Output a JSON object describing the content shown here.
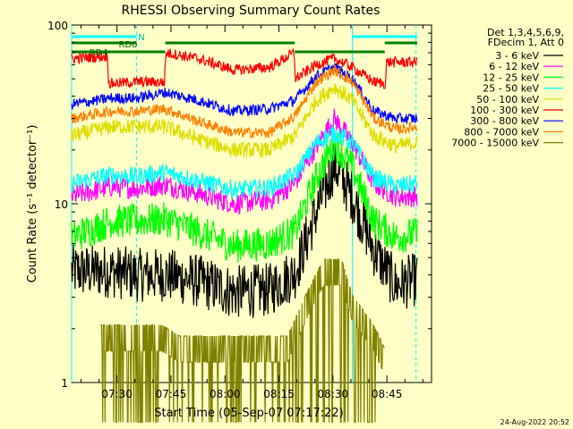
{
  "chart_data": {
    "type": "line",
    "title": "RHESSI Observing Summary Count Rates",
    "xlabel": "Start Time (05-Sep-07 07:17:22)",
    "ylabel": "Count Rate (s⁻¹ detector⁻¹)",
    "y_scale": "log",
    "ylim": [
      1,
      100
    ],
    "xlim_minutes": [
      0,
      100
    ],
    "x_ticks": [
      {
        "t": 12.6,
        "label": "07:30"
      },
      {
        "t": 27.6,
        "label": "07:45"
      },
      {
        "t": 42.6,
        "label": "08:00"
      },
      {
        "t": 57.6,
        "label": "08:15"
      },
      {
        "t": 72.6,
        "label": "08:30"
      },
      {
        "t": 87.6,
        "label": "08:45"
      }
    ],
    "y_tick_labels": [
      {
        "v": 1,
        "label": "1"
      },
      {
        "v": 10,
        "label": "10"
      },
      {
        "v": 100,
        "label": "100"
      }
    ],
    "legend_header": [
      "Det 1,3,4,5,6,9,",
      "FDecim 1, Att 0"
    ],
    "legend_position": "right",
    "timestamp": "24-Aug-2022 20:52",
    "markers": [
      {
        "label": "N",
        "color": "#00ffff",
        "segments": [
          [
            0,
            18
          ],
          [
            78,
            96
          ]
        ]
      },
      {
        "label": "RD0",
        "color": "#008000",
        "segments": [
          [
            0,
            18
          ],
          [
            26,
            62
          ],
          [
            87,
            96
          ]
        ]
      },
      {
        "label": "RD4",
        "color": "#008000",
        "segments": [
          [
            0,
            11
          ],
          [
            11,
            26
          ],
          [
            62,
            87
          ]
        ]
      }
    ],
    "vlines": [
      {
        "t": 0,
        "color": "#00ffff",
        "style": "solid"
      },
      {
        "t": 18,
        "color": "#00ffff",
        "style": "dashed"
      },
      {
        "t": 78,
        "color": "#00ffff",
        "style": "solid"
      },
      {
        "t": 95.7,
        "color": "#00ffff",
        "style": "dashed"
      }
    ],
    "series": [
      {
        "name": "3 - 6 keV",
        "color": "#000000",
        "noise": 0.35,
        "points": [
          [
            0,
            4.2
          ],
          [
            11,
            4.2
          ],
          [
            18,
            4.0
          ],
          [
            26,
            4.0
          ],
          [
            35,
            3.7
          ],
          [
            45,
            3.2
          ],
          [
            55,
            3.3
          ],
          [
            62,
            4.1
          ],
          [
            68,
            9
          ],
          [
            73,
            16.5
          ],
          [
            78,
            11
          ],
          [
            84,
            5.5
          ],
          [
            90,
            3.5
          ],
          [
            96,
            3.8
          ]
        ]
      },
      {
        "name": "6 - 12 keV",
        "color": "#ff00ff",
        "noise": 0.14,
        "points": [
          [
            0,
            11
          ],
          [
            11,
            12.5
          ],
          [
            18,
            12.2
          ],
          [
            26,
            12.8
          ],
          [
            35,
            11.5
          ],
          [
            45,
            10
          ],
          [
            55,
            10.5
          ],
          [
            62,
            13
          ],
          [
            68,
            21
          ],
          [
            73,
            30
          ],
          [
            78,
            22
          ],
          [
            84,
            13
          ],
          [
            90,
            11
          ],
          [
            96,
            11
          ]
        ]
      },
      {
        "name": "12 - 25 keV",
        "color": "#00ff00",
        "noise": 0.22,
        "points": [
          [
            0,
            6.5
          ],
          [
            11,
            8
          ],
          [
            18,
            8
          ],
          [
            26,
            8.2
          ],
          [
            35,
            7
          ],
          [
            45,
            5.8
          ],
          [
            55,
            6
          ],
          [
            62,
            7
          ],
          [
            68,
            14
          ],
          [
            73,
            22
          ],
          [
            78,
            16
          ],
          [
            84,
            8
          ],
          [
            90,
            6.5
          ],
          [
            96,
            6.8
          ]
        ]
      },
      {
        "name": "25 - 50 keV",
        "color": "#00ffff",
        "noise": 0.12,
        "points": [
          [
            0,
            13
          ],
          [
            11,
            14.5
          ],
          [
            18,
            14.2
          ],
          [
            26,
            15
          ],
          [
            35,
            13.5
          ],
          [
            45,
            12
          ],
          [
            55,
            12.3
          ],
          [
            62,
            14.5
          ],
          [
            68,
            22
          ],
          [
            73,
            25
          ],
          [
            78,
            22
          ],
          [
            84,
            14
          ],
          [
            90,
            12.5
          ],
          [
            96,
            13
          ]
        ]
      },
      {
        "name": "50 - 100 keV",
        "color": "#dddd00",
        "noise": 0.1,
        "points": [
          [
            0,
            24
          ],
          [
            11,
            27
          ],
          [
            18,
            27
          ],
          [
            26,
            27
          ],
          [
            35,
            23
          ],
          [
            45,
            20
          ],
          [
            55,
            20
          ],
          [
            62,
            24
          ],
          [
            68,
            38
          ],
          [
            73,
            45
          ],
          [
            78,
            38
          ],
          [
            84,
            24
          ],
          [
            90,
            21
          ],
          [
            96,
            22
          ]
        ]
      },
      {
        "name": "100 - 300 keV",
        "color": "#ff0000",
        "noise": 0.07,
        "points": [
          [
            0,
            65
          ],
          [
            10,
            67
          ],
          [
            10.3,
            47
          ],
          [
            18,
            48
          ],
          [
            25.8,
            48
          ],
          [
            26.2,
            70
          ],
          [
            35,
            65
          ],
          [
            45,
            56
          ],
          [
            55,
            58
          ],
          [
            61.8,
            70
          ],
          [
            62.2,
            50
          ],
          [
            68,
            60
          ],
          [
            73,
            65
          ],
          [
            78,
            58
          ],
          [
            84,
            48
          ],
          [
            87.2,
            47
          ],
          [
            87.5,
            62
          ],
          [
            96,
            62
          ]
        ]
      },
      {
        "name": "300 - 800 keV",
        "color": "#0000ff",
        "noise": 0.07,
        "points": [
          [
            0,
            36
          ],
          [
            11,
            39
          ],
          [
            18,
            39
          ],
          [
            26,
            42
          ],
          [
            35,
            38
          ],
          [
            45,
            33
          ],
          [
            55,
            34
          ],
          [
            62,
            38
          ],
          [
            68,
            52
          ],
          [
            73,
            58
          ],
          [
            78,
            50
          ],
          [
            84,
            33
          ],
          [
            90,
            30
          ],
          [
            96,
            30
          ]
        ]
      },
      {
        "name": "800 - 7000 keV",
        "color": "#ff8000",
        "noise": 0.07,
        "points": [
          [
            0,
            30
          ],
          [
            11,
            33
          ],
          [
            18,
            33
          ],
          [
            26,
            34
          ],
          [
            35,
            29
          ],
          [
            45,
            25
          ],
          [
            55,
            25
          ],
          [
            62,
            31
          ],
          [
            68,
            48
          ],
          [
            73,
            56
          ],
          [
            78,
            48
          ],
          [
            84,
            30
          ],
          [
            90,
            26
          ],
          [
            96,
            27
          ]
        ]
      },
      {
        "name": "7000 - 15000 keV",
        "color": "#808000",
        "noise": 0.6,
        "points": [
          [
            8,
            1.5
          ],
          [
            25,
            1.5
          ],
          [
            30,
            1.3
          ],
          [
            60,
            1.3
          ],
          [
            65,
            2.2
          ],
          [
            70,
            3.5
          ],
          [
            75,
            3.5
          ],
          [
            78,
            2.2
          ],
          [
            84,
            1.5
          ],
          [
            87,
            1.1
          ]
        ]
      }
    ]
  }
}
